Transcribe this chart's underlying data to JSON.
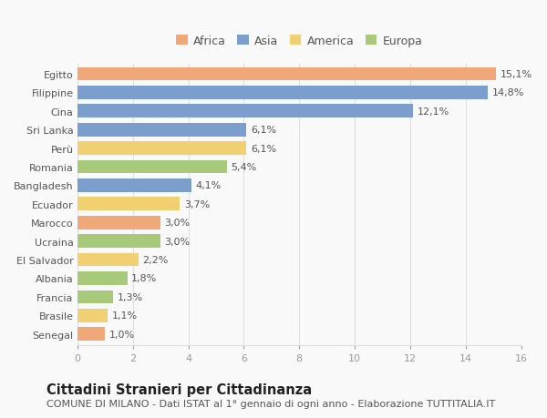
{
  "countries": [
    "Egitto",
    "Filippine",
    "Cina",
    "Sri Lanka",
    "Perù",
    "Romania",
    "Bangladesh",
    "Ecuador",
    "Marocco",
    "Ucraina",
    "El Salvador",
    "Albania",
    "Francia",
    "Brasile",
    "Senegal"
  ],
  "values": [
    15.1,
    14.8,
    12.1,
    6.1,
    6.1,
    5.4,
    4.1,
    3.7,
    3.0,
    3.0,
    2.2,
    1.8,
    1.3,
    1.1,
    1.0
  ],
  "labels": [
    "15,1%",
    "14,8%",
    "12,1%",
    "6,1%",
    "6,1%",
    "5,4%",
    "4,1%",
    "3,7%",
    "3,0%",
    "3,0%",
    "2,2%",
    "1,8%",
    "1,3%",
    "1,1%",
    "1,0%"
  ],
  "continents": [
    "Africa",
    "Asia",
    "Asia",
    "Asia",
    "America",
    "Europa",
    "Asia",
    "America",
    "Africa",
    "Europa",
    "America",
    "Europa",
    "Europa",
    "America",
    "Africa"
  ],
  "colors": {
    "Africa": "#F0A878",
    "Asia": "#7B9FCC",
    "America": "#F0D070",
    "Europa": "#A8C87A"
  },
  "legend_order": [
    "Africa",
    "Asia",
    "America",
    "Europa"
  ],
  "title": "Cittadini Stranieri per Cittadinanza",
  "subtitle": "COMUNE DI MILANO - Dati ISTAT al 1° gennaio di ogni anno - Elaborazione TUTTITALIA.IT",
  "xlim": [
    0,
    16
  ],
  "xticks": [
    0,
    2,
    4,
    6,
    8,
    10,
    12,
    14,
    16
  ],
  "bg_color": "#f9f9f9",
  "grid_color": "#e0e0e0",
  "bar_height": 0.72,
  "title_fontsize": 10.5,
  "subtitle_fontsize": 8,
  "label_fontsize": 8,
  "tick_fontsize": 8,
  "legend_fontsize": 9
}
